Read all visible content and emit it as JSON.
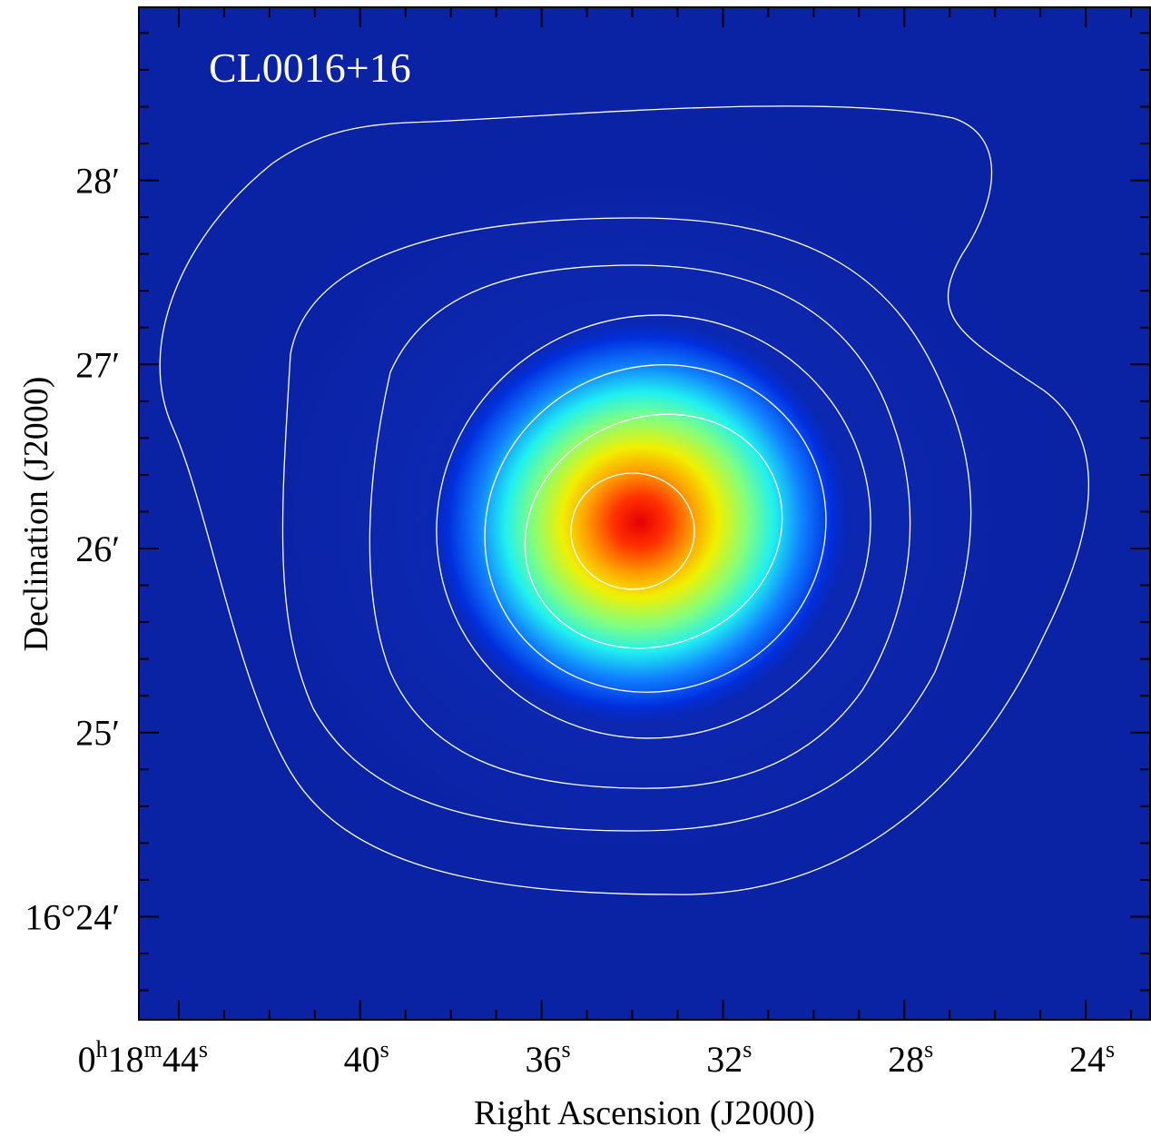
{
  "chart_data": {
    "type": "image",
    "title": "CL0016+16",
    "x_label": "Right Ascension (J2000)",
    "y_label": "Declination (J2000)",
    "xlim": [
      44.88,
      22.58
    ],
    "ylim": [
      23.44,
      28.94
    ],
    "xticks": [
      {
        "value": 44,
        "label": "0h18m44s"
      },
      {
        "value": 40,
        "label": "40s"
      },
      {
        "value": 36,
        "label": "36s"
      },
      {
        "value": 32,
        "label": "32s"
      },
      {
        "value": 28,
        "label": "28s"
      },
      {
        "value": 24,
        "label": "24s"
      }
    ],
    "yticks": [
      {
        "value": 24,
        "label": "16°24′"
      },
      {
        "value": 25,
        "label": "25′"
      },
      {
        "value": 26,
        "label": "26′"
      },
      {
        "value": 27,
        "label": "27′"
      },
      {
        "value": 28,
        "label": "28′"
      }
    ],
    "xminorticks": [
      23,
      25,
      26,
      27,
      29,
      30,
      31,
      33,
      34,
      35,
      37,
      38,
      39,
      41,
      42,
      43
    ],
    "yminorticks": [
      23.6,
      23.8,
      24.2,
      24.4,
      24.6,
      24.8,
      25.2,
      25.4,
      25.6,
      25.8,
      26.2,
      26.4,
      26.6,
      26.8,
      27.2,
      27.4,
      27.6,
      27.8,
      28.2,
      28.4,
      28.6,
      28.8
    ]
  }
}
